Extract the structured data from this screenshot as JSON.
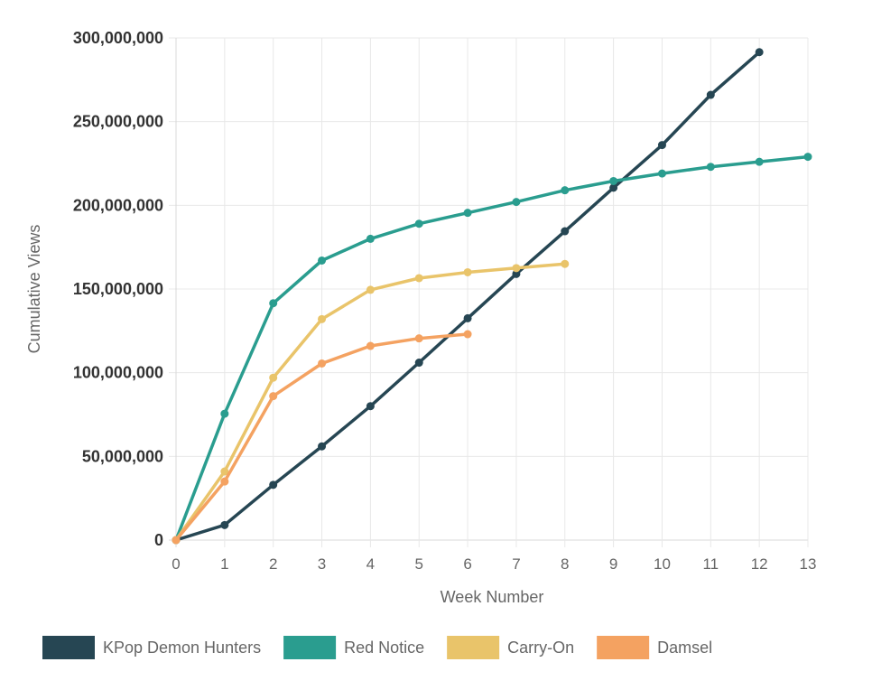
{
  "chart_data": {
    "type": "line",
    "title": "",
    "xlabel": "Week Number",
    "ylabel": "Cumulative Views",
    "x": [
      0,
      1,
      2,
      3,
      4,
      5,
      6,
      7,
      8,
      9,
      10,
      11,
      12,
      13
    ],
    "xlim": [
      0,
      13
    ],
    "ylim": [
      0,
      300000000
    ],
    "y_ticks": [
      0,
      50000000,
      100000000,
      150000000,
      200000000,
      250000000,
      300000000
    ],
    "y_tick_labels": [
      "0",
      "50,000,000",
      "100,000,000",
      "150,000,000",
      "200,000,000",
      "250,000,000",
      "300,000,000"
    ],
    "x_tick_labels": [
      "0",
      "1",
      "2",
      "3",
      "4",
      "5",
      "6",
      "7",
      "8",
      "9",
      "10",
      "11",
      "12",
      "13"
    ],
    "grid": true,
    "legend_position": "bottom",
    "series": [
      {
        "name": "KPop Demon Hunters",
        "color": "#264653",
        "x": [
          0,
          1,
          2,
          3,
          4,
          5,
          6,
          7,
          8,
          9,
          10,
          11,
          12
        ],
        "values": [
          0,
          9000000,
          33000000,
          56000000,
          80000000,
          106000000,
          132500000,
          159000000,
          184500000,
          210500000,
          236000000,
          266000000,
          291500000
        ]
      },
      {
        "name": "Red Notice",
        "color": "#2a9d8f",
        "x": [
          0,
          1,
          2,
          3,
          4,
          5,
          6,
          7,
          8,
          9,
          10,
          11,
          12,
          13
        ],
        "values": [
          0,
          75500000,
          141500000,
          167000000,
          180000000,
          189000000,
          195500000,
          202000000,
          209000000,
          214500000,
          219000000,
          223000000,
          226000000,
          229000000
        ]
      },
      {
        "name": "Carry-On",
        "color": "#e9c46a",
        "x": [
          0,
          1,
          2,
          3,
          4,
          5,
          6,
          7,
          8
        ],
        "values": [
          0,
          41000000,
          97000000,
          132000000,
          149500000,
          156500000,
          160000000,
          162500000,
          165000000
        ]
      },
      {
        "name": "Damsel",
        "color": "#f4a261",
        "x": [
          0,
          1,
          2,
          3,
          4,
          5,
          6
        ],
        "values": [
          0,
          35000000,
          86000000,
          105500000,
          116000000,
          120500000,
          123000000
        ]
      }
    ]
  }
}
